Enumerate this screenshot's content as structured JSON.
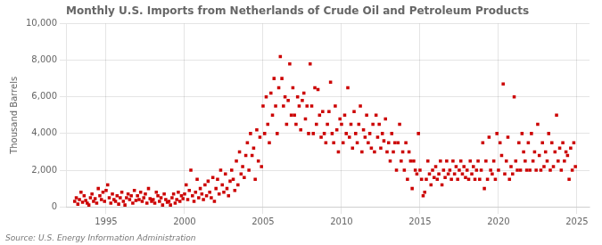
{
  "chart_data": {
    "type": "scatter",
    "title": "Monthly U.S. Imports from Netherlands of Crude Oil and Petroleum Products",
    "ylabel": "Thousand Barrels",
    "annotation": "Source: U.S. Energy Information Administration",
    "color": "#CC0000",
    "marker": "square",
    "grid": true,
    "xlim": [
      1992.5,
      2025.8
    ],
    "xticks": [
      1995,
      2000,
      2005,
      2010,
      2015,
      2020,
      2025
    ],
    "ylim": [
      0,
      10000
    ],
    "yticks": [
      0,
      {
        "value": 2000,
        "label": "2,000"
      },
      {
        "value": 4000,
        "label": "4,000"
      },
      {
        "value": 6000,
        "label": "6,000"
      },
      {
        "value": 8000,
        "label": "8,000"
      },
      {
        "value": 10000,
        "label": "10,000"
      }
    ],
    "x": [
      1993.0,
      1993.1,
      1993.2,
      1993.3,
      1993.4,
      1993.5,
      1993.6,
      1993.7,
      1993.8,
      1993.9,
      1994.0,
      1994.1,
      1994.2,
      1994.3,
      1994.4,
      1994.5,
      1994.6,
      1994.7,
      1994.8,
      1994.9,
      1995.0,
      1995.1,
      1995.2,
      1995.3,
      1995.4,
      1995.5,
      1995.6,
      1995.7,
      1995.8,
      1995.9,
      1996.0,
      1996.1,
      1996.2,
      1996.3,
      1996.4,
      1996.5,
      1996.6,
      1996.7,
      1996.8,
      1996.9,
      1997.0,
      1997.1,
      1997.2,
      1997.3,
      1997.4,
      1997.5,
      1997.6,
      1997.7,
      1997.8,
      1997.9,
      1998.0,
      1998.1,
      1998.2,
      1998.3,
      1998.4,
      1998.5,
      1998.6,
      1998.7,
      1998.8,
      1998.9,
      1999.0,
      1999.1,
      1999.2,
      1999.3,
      1999.4,
      1999.5,
      1999.6,
      1999.7,
      1999.8,
      1999.9,
      2000.0,
      2000.1,
      2000.2,
      2000.3,
      2000.4,
      2000.5,
      2000.6,
      2000.7,
      2000.8,
      2000.9,
      2001.0,
      2001.1,
      2001.2,
      2001.3,
      2001.4,
      2001.5,
      2001.6,
      2001.7,
      2001.8,
      2001.9,
      2002.0,
      2002.1,
      2002.2,
      2002.3,
      2002.4,
      2002.5,
      2002.6,
      2002.7,
      2002.8,
      2002.9,
      2003.0,
      2003.1,
      2003.2,
      2003.3,
      2003.4,
      2003.5,
      2003.6,
      2003.7,
      2003.8,
      2003.9,
      2004.0,
      2004.1,
      2004.2,
      2004.3,
      2004.4,
      2004.5,
      2004.6,
      2004.7,
      2004.8,
      2004.9,
      2005.0,
      2005.1,
      2005.2,
      2005.3,
      2005.4,
      2005.5,
      2005.6,
      2005.7,
      2005.8,
      2005.9,
      2006.0,
      2006.1,
      2006.2,
      2006.3,
      2006.4,
      2006.5,
      2006.6,
      2006.7,
      2006.8,
      2006.9,
      2007.0,
      2007.1,
      2007.2,
      2007.3,
      2007.4,
      2007.5,
      2007.6,
      2007.7,
      2007.8,
      2007.9,
      2008.0,
      2008.1,
      2008.2,
      2008.3,
      2008.4,
      2008.5,
      2008.6,
      2008.7,
      2008.8,
      2008.9,
      2009.0,
      2009.1,
      2009.2,
      2009.3,
      2009.4,
      2009.5,
      2009.6,
      2009.7,
      2009.8,
      2009.9,
      2010.0,
      2010.1,
      2010.2,
      2010.3,
      2010.4,
      2010.5,
      2010.6,
      2010.7,
      2010.8,
      2010.9,
      2011.0,
      2011.1,
      2011.2,
      2011.3,
      2011.4,
      2011.5,
      2011.6,
      2011.7,
      2011.8,
      2011.9,
      2012.0,
      2012.1,
      2012.2,
      2012.3,
      2012.4,
      2012.5,
      2012.6,
      2012.7,
      2012.8,
      2012.9,
      2013.0,
      2013.1,
      2013.2,
      2013.3,
      2013.4,
      2013.5,
      2013.6,
      2013.7,
      2013.8,
      2013.9,
      2014.0,
      2014.1,
      2014.2,
      2014.3,
      2014.4,
      2014.5,
      2014.6,
      2014.7,
      2014.8,
      2014.9,
      2015.0,
      2015.1,
      2015.2,
      2015.3,
      2015.4,
      2015.5,
      2015.6,
      2015.7,
      2015.8,
      2015.9,
      2016.0,
      2016.1,
      2016.2,
      2016.3,
      2016.4,
      2016.5,
      2016.6,
      2016.7,
      2016.8,
      2016.9,
      2017.0,
      2017.1,
      2017.2,
      2017.3,
      2017.4,
      2017.5,
      2017.6,
      2017.7,
      2017.8,
      2017.9,
      2018.0,
      2018.1,
      2018.2,
      2018.3,
      2018.4,
      2018.5,
      2018.6,
      2018.7,
      2018.8,
      2018.9,
      2019.0,
      2019.1,
      2019.2,
      2019.3,
      2019.4,
      2019.5,
      2019.6,
      2019.7,
      2019.8,
      2019.9,
      2020.0,
      2020.1,
      2020.2,
      2020.3,
      2020.4,
      2020.5,
      2020.6,
      2020.7,
      2020.8,
      2020.9,
      2021.0,
      2021.1,
      2021.2,
      2021.3,
      2021.4,
      2021.5,
      2021.6,
      2021.7,
      2021.8,
      2021.9,
      2022.0,
      2022.1,
      2022.2,
      2022.3,
      2022.4,
      2022.5,
      2022.6,
      2022.7,
      2022.8,
      2022.9,
      2023.0,
      2023.1,
      2023.2,
      2023.3,
      2023.4,
      2023.5,
      2023.6,
      2023.7,
      2023.8,
      2023.9,
      2024.0,
      2024.1,
      2024.2,
      2024.3,
      2024.4,
      2024.5,
      2024.6,
      2024.7,
      2024.8,
      2024.9
    ],
    "values": [
      300,
      500,
      150,
      400,
      800,
      250,
      600,
      350,
      200,
      100,
      500,
      700,
      300,
      450,
      200,
      1000,
      600,
      400,
      800,
      300,
      900,
      1200,
      500,
      200,
      700,
      400,
      300,
      600,
      150,
      500,
      800,
      300,
      100,
      500,
      700,
      400,
      600,
      200,
      900,
      350,
      600,
      400,
      800,
      300,
      500,
      700,
      200,
      1000,
      450,
      300,
      400,
      200,
      800,
      600,
      300,
      500,
      100,
      700,
      400,
      250,
      300,
      100,
      500,
      700,
      200,
      400,
      800,
      300,
      600,
      450,
      700,
      1200,
      400,
      900,
      2000,
      600,
      300,
      800,
      1500,
      500,
      1000,
      700,
      400,
      1200,
      600,
      1400,
      800,
      500,
      1600,
      300,
      1000,
      1500,
      700,
      2000,
      1200,
      800,
      1800,
      1000,
      600,
      1400,
      2000,
      1500,
      900,
      2500,
      1200,
      3000,
      1800,
      2200,
      1600,
      2800,
      3500,
      2000,
      4000,
      2800,
      3200,
      1500,
      4200,
      2500,
      3800,
      2200,
      5500,
      4000,
      6000,
      4500,
      3500,
      6200,
      5000,
      7000,
      5500,
      4000,
      6500,
      8200,
      7000,
      5500,
      6000,
      4500,
      5800,
      7800,
      5000,
      6500,
      5000,
      4500,
      6000,
      5500,
      4200,
      5800,
      6200,
      4800,
      5500,
      4000,
      7800,
      5500,
      4000,
      6500,
      4500,
      6400,
      5000,
      3800,
      5200,
      4000,
      3500,
      4500,
      5200,
      6800,
      4000,
      3500,
      5500,
      4200,
      3000,
      4800,
      4500,
      3500,
      5000,
      4000,
      6500,
      3800,
      4500,
      3200,
      5200,
      4000,
      3500,
      4500,
      5500,
      3000,
      4200,
      3800,
      5000,
      3500,
      4000,
      3200,
      4500,
      3000,
      5000,
      3800,
      4500,
      3200,
      4000,
      3600,
      4800,
      3000,
      3500,
      2500,
      4000,
      3000,
      3500,
      2000,
      3500,
      4500,
      2500,
      3000,
      2000,
      3500,
      1500,
      3000,
      2500,
      1000,
      2500,
      2000,
      1800,
      4000,
      2000,
      1500,
      600,
      800,
      1500,
      2500,
      1800,
      1200,
      2000,
      1600,
      2200,
      1500,
      1800,
      2500,
      1200,
      2000,
      1600,
      2500,
      1800,
      2000,
      1500,
      2500,
      1800,
      2200,
      1500,
      2000,
      2500,
      1800,
      2200,
      1600,
      2000,
      1500,
      2500,
      1800,
      2200,
      1500,
      2000,
      2500,
      1500,
      2000,
      3500,
      1000,
      2500,
      1500,
      3800,
      2000,
      1800,
      2500,
      1500,
      4000,
      2000,
      3500,
      2800,
      6700,
      1800,
      2500,
      3800,
      1500,
      2200,
      1800,
      6000,
      2500,
      2000,
      3500,
      2000,
      4000,
      3000,
      2500,
      2000,
      3500,
      2000,
      4000,
      2500,
      3000,
      2000,
      4500,
      2800,
      2000,
      3500,
      2200,
      3000,
      2500,
      4000,
      2000,
      3500,
      2200,
      3000,
      5000,
      2500,
      3200,
      2000,
      3500,
      2500,
      3000,
      2800,
      1500,
      3200,
      2000,
      3500,
      2200
    ]
  }
}
